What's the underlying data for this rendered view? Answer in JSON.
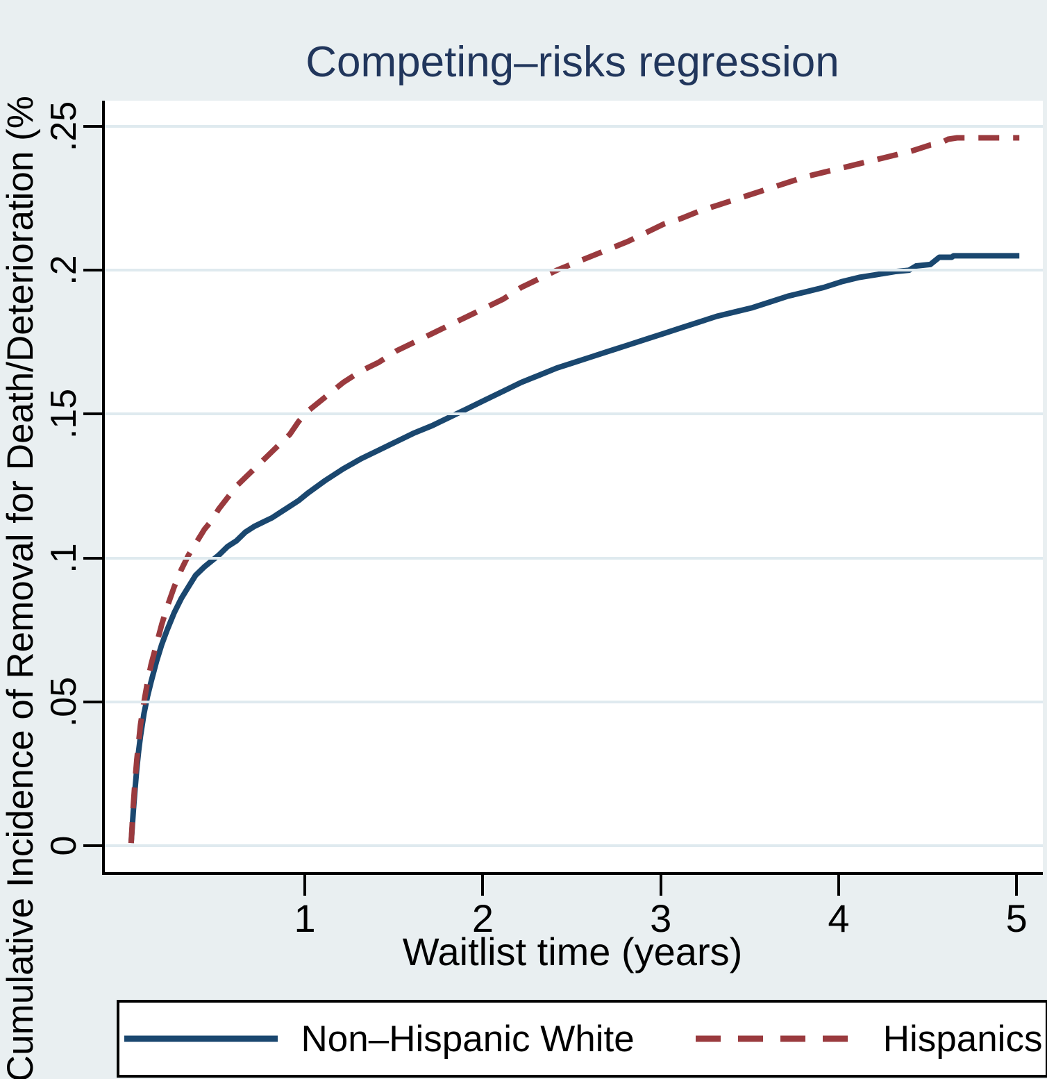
{
  "title": {
    "text": "Competing–risks regression"
  },
  "y_axis": {
    "label": "Cumulative Incidence of Removal for Death/Deterioration (%",
    "ticks": [
      {
        "v": 0,
        "label": "0"
      },
      {
        "v": 0.05,
        "label": ".05"
      },
      {
        "v": 0.1,
        "label": ".1"
      },
      {
        "v": 0.15,
        "label": ".15"
      },
      {
        "v": 0.2,
        "label": ".2"
      },
      {
        "v": 0.25,
        "label": ".25"
      }
    ]
  },
  "x_axis": {
    "label": "Waitlist time (years)",
    "ticks": [
      {
        "v": 1,
        "label": "1"
      },
      {
        "v": 2,
        "label": "2"
      },
      {
        "v": 3,
        "label": "3"
      },
      {
        "v": 4,
        "label": "4"
      },
      {
        "v": 5,
        "label": "5"
      }
    ]
  },
  "legend": {
    "items": [
      {
        "label": "Non–Hispanic White",
        "style": "solid",
        "color": "#1a476f"
      },
      {
        "label": "Hispanics",
        "style": "dashed",
        "color": "#9a3a3e"
      }
    ]
  },
  "colors": {
    "background": "#e9eff1",
    "plot_background": "#ffffff",
    "grid": "#dfeaef",
    "axis": "#000000",
    "title": "#21365c",
    "navy": "#1a476f",
    "maroon": "#9a3a3e"
  },
  "chart_data": {
    "type": "line",
    "title": "Competing–risks regression",
    "xlabel": "Waitlist time (years)",
    "ylabel": "Cumulative Incidence of Removal for Death/Deterioration (%)",
    "xlim": [
      -0.14,
      5.132
    ],
    "ylim": [
      -0.0091,
      0.2589
    ],
    "x_ticks": [
      1,
      2,
      3,
      4,
      5
    ],
    "y_ticks": [
      0,
      0.05,
      0.1,
      0.15,
      0.2,
      0.25
    ],
    "grid": true,
    "legend_position": "bottom",
    "series": [
      {
        "name": "Non–Hispanic White",
        "style": "solid",
        "color": "#1a476f",
        "stroke_width": 8,
        "points": [
          [
            0.008,
            0.001
          ],
          [
            0.02,
            0.012
          ],
          [
            0.03,
            0.02
          ],
          [
            0.04,
            0.027
          ],
          [
            0.05,
            0.033
          ],
          [
            0.06,
            0.038
          ],
          [
            0.08,
            0.046
          ],
          [
            0.1,
            0.052
          ],
          [
            0.12,
            0.057
          ],
          [
            0.15,
            0.064
          ],
          [
            0.18,
            0.07
          ],
          [
            0.21,
            0.075
          ],
          [
            0.25,
            0.081
          ],
          [
            0.29,
            0.086
          ],
          [
            0.33,
            0.09
          ],
          [
            0.37,
            0.094
          ],
          [
            0.42,
            0.097
          ],
          [
            0.46,
            0.099
          ],
          [
            0.5,
            0.101
          ],
          [
            0.55,
            0.104
          ],
          [
            0.6,
            0.106
          ],
          [
            0.65,
            0.109
          ],
          [
            0.7,
            0.111
          ],
          [
            0.75,
            0.1125
          ],
          [
            0.8,
            0.114
          ],
          [
            0.85,
            0.116
          ],
          [
            0.9,
            0.118
          ],
          [
            0.95,
            0.12
          ],
          [
            1.0,
            0.1225
          ],
          [
            1.1,
            0.127
          ],
          [
            1.2,
            0.131
          ],
          [
            1.3,
            0.1345
          ],
          [
            1.4,
            0.1375
          ],
          [
            1.5,
            0.1405
          ],
          [
            1.6,
            0.1435
          ],
          [
            1.7,
            0.146
          ],
          [
            1.8,
            0.149
          ],
          [
            1.9,
            0.152
          ],
          [
            2.0,
            0.155
          ],
          [
            2.1,
            0.158
          ],
          [
            2.2,
            0.161
          ],
          [
            2.3,
            0.1635
          ],
          [
            2.4,
            0.166
          ],
          [
            2.5,
            0.168
          ],
          [
            2.6,
            0.17
          ],
          [
            2.7,
            0.172
          ],
          [
            2.8,
            0.174
          ],
          [
            2.9,
            0.176
          ],
          [
            3.0,
            0.178
          ],
          [
            3.1,
            0.18
          ],
          [
            3.2,
            0.182
          ],
          [
            3.3,
            0.184
          ],
          [
            3.4,
            0.1855
          ],
          [
            3.5,
            0.187
          ],
          [
            3.6,
            0.189
          ],
          [
            3.7,
            0.191
          ],
          [
            3.8,
            0.1925
          ],
          [
            3.9,
            0.194
          ],
          [
            4.0,
            0.196
          ],
          [
            4.1,
            0.1975
          ],
          [
            4.2,
            0.1985
          ],
          [
            4.3,
            0.1995
          ],
          [
            4.38,
            0.2
          ],
          [
            4.42,
            0.2015
          ],
          [
            4.5,
            0.202
          ],
          [
            4.55,
            0.2045
          ],
          [
            4.62,
            0.2045
          ],
          [
            4.63,
            0.205
          ],
          [
            5.0,
            0.205
          ]
        ]
      },
      {
        "name": "Hispanics",
        "style": "dashed",
        "color": "#9a3a3e",
        "stroke_width": 8,
        "points": [
          [
            0.008,
            0.001
          ],
          [
            0.02,
            0.014
          ],
          [
            0.03,
            0.023
          ],
          [
            0.04,
            0.03
          ],
          [
            0.05,
            0.036
          ],
          [
            0.06,
            0.042
          ],
          [
            0.08,
            0.05
          ],
          [
            0.1,
            0.057
          ],
          [
            0.12,
            0.063
          ],
          [
            0.15,
            0.07
          ],
          [
            0.18,
            0.077
          ],
          [
            0.21,
            0.083
          ],
          [
            0.25,
            0.09
          ],
          [
            0.29,
            0.096
          ],
          [
            0.33,
            0.101
          ],
          [
            0.37,
            0.105
          ],
          [
            0.42,
            0.11
          ],
          [
            0.46,
            0.113
          ],
          [
            0.5,
            0.117
          ],
          [
            0.55,
            0.121
          ],
          [
            0.6,
            0.125
          ],
          [
            0.65,
            0.128
          ],
          [
            0.7,
            0.131
          ],
          [
            0.75,
            0.134
          ],
          [
            0.8,
            0.137
          ],
          [
            0.85,
            0.14
          ],
          [
            0.9,
            0.143
          ],
          [
            0.95,
            0.1475
          ],
          [
            1.0,
            0.151
          ],
          [
            1.1,
            0.156
          ],
          [
            1.2,
            0.161
          ],
          [
            1.3,
            0.165
          ],
          [
            1.4,
            0.168
          ],
          [
            1.5,
            0.172
          ],
          [
            1.6,
            0.175
          ],
          [
            1.7,
            0.178
          ],
          [
            1.8,
            0.181
          ],
          [
            1.9,
            0.184
          ],
          [
            2.0,
            0.187
          ],
          [
            2.1,
            0.19
          ],
          [
            2.2,
            0.194
          ],
          [
            2.3,
            0.197
          ],
          [
            2.4,
            0.2
          ],
          [
            2.5,
            0.2025
          ],
          [
            2.6,
            0.205
          ],
          [
            2.7,
            0.2075
          ],
          [
            2.8,
            0.21
          ],
          [
            2.9,
            0.213
          ],
          [
            3.0,
            0.216
          ],
          [
            3.1,
            0.218
          ],
          [
            3.2,
            0.2205
          ],
          [
            3.3,
            0.2225
          ],
          [
            3.4,
            0.2245
          ],
          [
            3.5,
            0.2265
          ],
          [
            3.6,
            0.2285
          ],
          [
            3.7,
            0.2305
          ],
          [
            3.8,
            0.2325
          ],
          [
            3.9,
            0.234
          ],
          [
            4.0,
            0.2355
          ],
          [
            4.1,
            0.237
          ],
          [
            4.2,
            0.2385
          ],
          [
            4.3,
            0.24
          ],
          [
            4.4,
            0.2415
          ],
          [
            4.5,
            0.2435
          ],
          [
            4.55,
            0.244
          ],
          [
            4.6,
            0.2455
          ],
          [
            4.65,
            0.246
          ],
          [
            5.0,
            0.246
          ]
        ]
      }
    ]
  }
}
